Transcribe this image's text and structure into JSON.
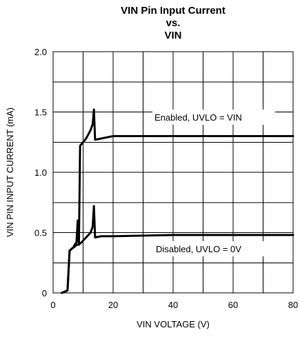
{
  "chart_data": {
    "type": "line",
    "title": [
      "VIN Pin Input Current",
      "vs.",
      "VIN"
    ],
    "xlabel": "VIN VOLTAGE (V)",
    "ylabel": "VIN PIN INPUT CURRENT (mA)",
    "xlim": [
      0,
      80
    ],
    "ylim": [
      0,
      2.0
    ],
    "x_ticks": [
      0,
      20,
      40,
      60,
      80
    ],
    "y_ticks": [
      "0",
      "0.5",
      "1.0",
      "1.5",
      "2.0"
    ],
    "grid": true,
    "series": [
      {
        "name": "Enabled, UVLO = VIN",
        "points": [
          [
            2.9,
            0
          ],
          [
            4.8,
            0.02
          ],
          [
            5.5,
            0.35
          ],
          [
            7.0,
            0.38
          ],
          [
            8.0,
            0.4
          ],
          [
            8.6,
            0.4
          ],
          [
            9.0,
            1.22
          ],
          [
            11.0,
            1.28
          ],
          [
            12.5,
            1.35
          ],
          [
            13.2,
            1.4
          ],
          [
            13.6,
            1.52
          ],
          [
            14.0,
            1.27
          ],
          [
            16.0,
            1.28
          ],
          [
            18.0,
            1.29
          ],
          [
            20.0,
            1.3
          ],
          [
            40.0,
            1.3
          ],
          [
            60.0,
            1.3
          ],
          [
            80.0,
            1.3
          ]
        ]
      },
      {
        "name": "Disabled, UVLO = 0V",
        "points": [
          [
            2.9,
            0
          ],
          [
            4.8,
            0.02
          ],
          [
            5.5,
            0.35
          ],
          [
            6.8,
            0.38
          ],
          [
            7.2,
            0.4
          ],
          [
            7.8,
            0.42
          ],
          [
            8.2,
            0.6
          ],
          [
            8.6,
            0.4
          ],
          [
            9.5,
            0.42
          ],
          [
            11.0,
            0.46
          ],
          [
            12.5,
            0.5
          ],
          [
            13.2,
            0.55
          ],
          [
            13.6,
            0.72
          ],
          [
            14.0,
            0.46
          ],
          [
            16.0,
            0.47
          ],
          [
            20.0,
            0.47
          ],
          [
            40.0,
            0.48
          ],
          [
            60.0,
            0.48
          ],
          [
            80.0,
            0.48
          ]
        ]
      }
    ]
  }
}
